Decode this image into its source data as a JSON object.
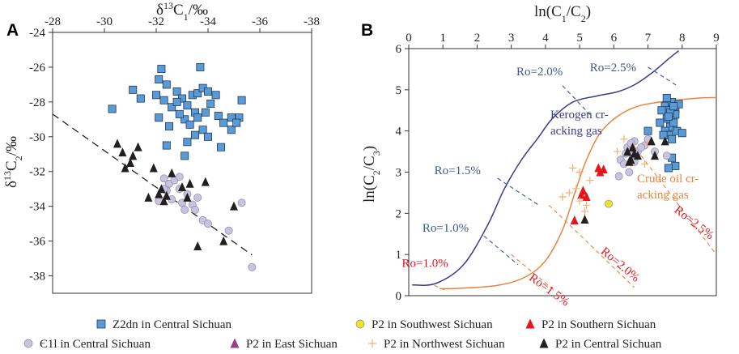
{
  "chart_data": [
    {
      "panel": "A",
      "type": "scatter",
      "xlabel": "δ13C1/‰",
      "ylabel": "δ13C2/‰",
      "xlim": [
        -28,
        -38
      ],
      "ylim": [
        -39,
        -24
      ],
      "xticks": [
        "-28",
        "-30",
        "-32",
        "-34",
        "-36",
        "-38"
      ],
      "yticks": [
        "-24",
        "-26",
        "-28",
        "-30",
        "-32",
        "-34",
        "-36",
        "-38"
      ],
      "trendline": [
        [
          -28,
          -28.7
        ],
        [
          -35.7,
          -36.8
        ]
      ],
      "series": [
        {
          "name": "Z2dn in Central Sichuan",
          "marker": "square",
          "color": "#5b9bd5",
          "points": [
            [
              -30.3,
              -28.4
            ],
            [
              -31.1,
              -27.3
            ],
            [
              -31.4,
              -27.8
            ],
            [
              -32.1,
              -26.7
            ],
            [
              -32.2,
              -26.1
            ],
            [
              -32.0,
              -27.6
            ],
            [
              -32.4,
              -27.0
            ],
            [
              -32.3,
              -27.9
            ],
            [
              -32.6,
              -28.3
            ],
            [
              -32.1,
              -28.9
            ],
            [
              -32.8,
              -27.4
            ],
            [
              -33.0,
              -27.8
            ],
            [
              -33.2,
              -28.2
            ],
            [
              -33.4,
              -27.6
            ],
            [
              -33.6,
              -27.5
            ],
            [
              -33.7,
              -26.0
            ],
            [
              -33.8,
              -27.2
            ],
            [
              -33.5,
              -28.6
            ],
            [
              -33.1,
              -29.0
            ],
            [
              -32.9,
              -28.7
            ],
            [
              -33.3,
              -29.3
            ],
            [
              -33.6,
              -28.9
            ],
            [
              -33.8,
              -29.6
            ],
            [
              -34.0,
              -27.4
            ],
            [
              -34.1,
              -28.1
            ],
            [
              -33.9,
              -28.6
            ],
            [
              -34.3,
              -27.6
            ],
            [
              -34.4,
              -28.8
            ],
            [
              -34.6,
              -29.2
            ],
            [
              -34.9,
              -28.9
            ],
            [
              -35.2,
              -28.9
            ],
            [
              -33.5,
              -29.9
            ],
            [
              -34.0,
              -30.0
            ],
            [
              -33.2,
              -30.3
            ],
            [
              -32.4,
              -30.5
            ],
            [
              -33.1,
              -31.1
            ],
            [
              -35.3,
              -27.9
            ],
            [
              -34.9,
              -29.6
            ],
            [
              -32.5,
              -29.4
            ],
            [
              -34.5,
              -30.6
            ],
            [
              -35.1,
              -29.2
            ],
            [
              -32.8,
              -28.0
            ]
          ]
        },
        {
          "name": "Є1l in Central Sichuan",
          "marker": "circle",
          "color": "#c7c4e0",
          "points": [
            [
              -32.3,
              -32.4
            ],
            [
              -32.5,
              -32.7
            ],
            [
              -32.7,
              -32.5
            ],
            [
              -32.4,
              -33.1
            ],
            [
              -32.9,
              -33.0
            ],
            [
              -33.2,
              -33.3
            ],
            [
              -33.0,
              -33.8
            ],
            [
              -32.6,
              -33.6
            ],
            [
              -32.1,
              -33.7
            ],
            [
              -33.4,
              -33.9
            ],
            [
              -33.6,
              -33.5
            ],
            [
              -33.5,
              -34.2
            ],
            [
              -33.1,
              -34.2
            ],
            [
              -33.8,
              -34.8
            ],
            [
              -34.0,
              -35.0
            ],
            [
              -34.8,
              -35.4
            ],
            [
              -35.3,
              -33.8
            ],
            [
              -35.7,
              -37.5
            ],
            [
              -32.3,
              -33.0
            ],
            [
              -32.9,
              -32.3
            ]
          ]
        },
        {
          "name": "P2 in Central Sichuan",
          "marker": "triangle",
          "color": "#231f20",
          "points": [
            [
              -30.5,
              -30.4
            ],
            [
              -30.7,
              -30.9
            ],
            [
              -31.1,
              -31.1
            ],
            [
              -31.0,
              -31.5
            ],
            [
              -31.3,
              -30.6
            ],
            [
              -30.8,
              -31.8
            ],
            [
              -31.7,
              -33.5
            ],
            [
              -31.9,
              -31.8
            ],
            [
              -32.2,
              -33.0
            ],
            [
              -32.4,
              -33.4
            ],
            [
              -32.3,
              -33.7
            ],
            [
              -32.6,
              -32.1
            ],
            [
              -32.1,
              -33.3
            ],
            [
              -33.0,
              -32.9
            ],
            [
              -33.3,
              -32.7
            ],
            [
              -33.6,
              -36.3
            ],
            [
              -33.9,
              -32.6
            ],
            [
              -34.6,
              -36.0
            ],
            [
              -35.0,
              -34.0
            ],
            [
              -33.2,
              -33.5
            ]
          ]
        }
      ]
    },
    {
      "panel": "B",
      "type": "scatter",
      "xlabel": "ln(C1/C2)",
      "ylabel": "ln(C2/C3)",
      "xlim": [
        0,
        9
      ],
      "ylim": [
        0,
        6
      ],
      "xticks": [
        "0",
        "1",
        "2",
        "3",
        "4",
        "5",
        "6",
        "7",
        "8",
        "9"
      ],
      "yticks": [
        "0",
        "1",
        "2",
        "3",
        "4",
        "5",
        "6"
      ],
      "curves": {
        "kerogen": {
          "color": "#3a3a8c",
          "points": [
            [
              0.1,
              0.26
            ],
            [
              0.8,
              0.3
            ],
            [
              1.6,
              0.75
            ],
            [
              2.3,
              1.7
            ],
            [
              2.8,
              2.6
            ],
            [
              3.3,
              3.3
            ],
            [
              3.8,
              3.85
            ],
            [
              4.2,
              4.3
            ],
            [
              4.8,
              4.7
            ],
            [
              5.5,
              4.85
            ],
            [
              6.1,
              4.95
            ],
            [
              6.6,
              5.12
            ],
            [
              7.1,
              5.4
            ],
            [
              7.6,
              5.75
            ],
            [
              7.9,
              5.95
            ]
          ]
        },
        "crude_oil": {
          "color": "#e8843f",
          "points": [
            [
              0.9,
              0.17
            ],
            [
              1.5,
              0.18
            ],
            [
              2.6,
              0.25
            ],
            [
              3.4,
              0.45
            ],
            [
              4.0,
              0.85
            ],
            [
              4.5,
              1.6
            ],
            [
              4.9,
              2.6
            ],
            [
              5.2,
              3.3
            ],
            [
              5.6,
              3.95
            ],
            [
              6.1,
              4.35
            ],
            [
              6.7,
              4.6
            ],
            [
              7.5,
              4.72
            ],
            [
              8.5,
              4.8
            ],
            [
              9.0,
              4.81
            ]
          ]
        }
      },
      "series": [
        {
          "name": "Z2dn in Central Sichuan",
          "marker": "square",
          "color": "#5b9bd5",
          "points": [
            [
              7.5,
              4.6
            ],
            [
              7.6,
              4.5
            ],
            [
              7.7,
              4.7
            ],
            [
              7.8,
              4.55
            ],
            [
              7.55,
              4.3
            ],
            [
              7.65,
              4.1
            ],
            [
              7.75,
              4.2
            ],
            [
              7.5,
              4.0
            ],
            [
              7.6,
              3.9
            ],
            [
              7.85,
              4.0
            ],
            [
              7.7,
              3.8
            ],
            [
              7.8,
              4.4
            ],
            [
              7.4,
              4.5
            ],
            [
              7.9,
              4.65
            ],
            [
              7.55,
              4.8
            ],
            [
              7.7,
              3.35
            ],
            [
              7.8,
              3.15
            ],
            [
              7.6,
              3.1
            ],
            [
              8.0,
              3.95
            ],
            [
              7.45,
              3.9
            ],
            [
              7.35,
              4.2
            ],
            [
              7.65,
              4.45
            ],
            [
              7.75,
              4.6
            ],
            [
              7.6,
              4.35
            ],
            [
              7.0,
              4.0
            ]
          ]
        },
        {
          "name": "P2 in Southwest Sichuan",
          "marker": "circle",
          "color": "#f2e21b",
          "points": [
            [
              5.85,
              2.23
            ]
          ]
        },
        {
          "name": "P2 in Southern Sichuan",
          "marker": "triangle",
          "color": "#e8141c",
          "points": [
            [
              5.1,
              2.55
            ],
            [
              5.05,
              2.45
            ],
            [
              5.2,
              2.4
            ],
            [
              4.85,
              1.83
            ],
            [
              5.55,
              3.1
            ],
            [
              5.7,
              3.07
            ],
            [
              5.6,
              3.0
            ]
          ]
        },
        {
          "name": "Є1l in Central Sichuan",
          "marker": "circle",
          "color": "#c7c4e0",
          "points": [
            [
              6.2,
              3.3
            ],
            [
              6.4,
              3.6
            ],
            [
              6.5,
              3.5
            ],
            [
              6.55,
              3.4
            ],
            [
              6.6,
              3.75
            ],
            [
              6.7,
              3.5
            ],
            [
              6.3,
              3.2
            ],
            [
              6.45,
              3.0
            ],
            [
              6.9,
              3.65
            ],
            [
              7.0,
              3.8
            ],
            [
              6.35,
              3.45
            ],
            [
              6.6,
              3.25
            ],
            [
              7.55,
              3.4
            ],
            [
              6.15,
              2.9
            ],
            [
              6.8,
              3.6
            ],
            [
              6.5,
              3.7
            ],
            [
              7.2,
              3.5
            ]
          ]
        },
        {
          "name": "P2 in East Sichuan",
          "marker": "triangle",
          "color": "#9b3d8e",
          "points": []
        },
        {
          "name": "P2 in Northwest Sichuan",
          "marker": "plus",
          "color": "#f0b070",
          "points": [
            [
              4.5,
              2.4
            ],
            [
              4.7,
              2.5
            ],
            [
              4.9,
              2.6
            ],
            [
              5.0,
              2.3
            ],
            [
              5.2,
              2.2
            ],
            [
              4.8,
              3.1
            ],
            [
              5.0,
              3.0
            ],
            [
              5.3,
              2.8
            ],
            [
              6.1,
              3.5
            ],
            [
              6.5,
              3.2
            ],
            [
              6.7,
              3.4
            ],
            [
              6.6,
              3.6
            ],
            [
              6.9,
              3.2
            ],
            [
              7.0,
              3.7
            ],
            [
              6.3,
              3.8
            ],
            [
              5.15,
              2.05
            ]
          ]
        },
        {
          "name": "P2 in Central Sichuan",
          "marker": "triangle",
          "color": "#231f20",
          "points": [
            [
              6.4,
              3.5
            ],
            [
              6.5,
              3.3
            ],
            [
              6.6,
              3.45
            ],
            [
              6.55,
              3.6
            ],
            [
              6.7,
              3.4
            ],
            [
              7.1,
              3.75
            ],
            [
              7.2,
              3.4
            ],
            [
              7.5,
              3.75
            ],
            [
              5.15,
              1.85
            ],
            [
              6.45,
              3.25
            ]
          ]
        }
      ],
      "annotations": {
        "kerogen_label_1": "Kerogen cr-",
        "kerogen_label_2": "acking gas",
        "crude_label_1": "Crude oil cr-",
        "crude_label_2": "acking gas",
        "ro_kerogen": [
          "Ro=2.0%",
          "Ro=2.5%",
          "Ro=1.5%",
          "Ro=1.0%"
        ],
        "ro_crude": [
          "Ro=1.0%",
          "Ro=1.5%",
          "Ro=2.0%",
          "Ro=2.5%"
        ]
      }
    }
  ],
  "panel_labels": {
    "a": "A",
    "b": "B"
  },
  "legend": [
    {
      "marker": "square",
      "color": "#5b9bd5",
      "text": "Z2dn in Central Sichuan"
    },
    {
      "marker": "circle",
      "color": "#f2e21b",
      "text": "P2 in Southwest Sichuan"
    },
    {
      "marker": "triangle",
      "color": "#e8141c",
      "text": "P2 in Southern Sichuan"
    },
    {
      "marker": "circle",
      "color": "#c7c4e0",
      "text": "Є1l in Central Sichuan"
    },
    {
      "marker": "triangle",
      "color": "#9b3d8e",
      "text": "P2 in East Sichuan"
    },
    {
      "marker": "plus",
      "color": "#f0b070",
      "text": "P2 in Northwest Sichuan"
    },
    {
      "marker": "triangle",
      "color": "#231f20",
      "text": "P2 in Central Sichuan"
    }
  ]
}
